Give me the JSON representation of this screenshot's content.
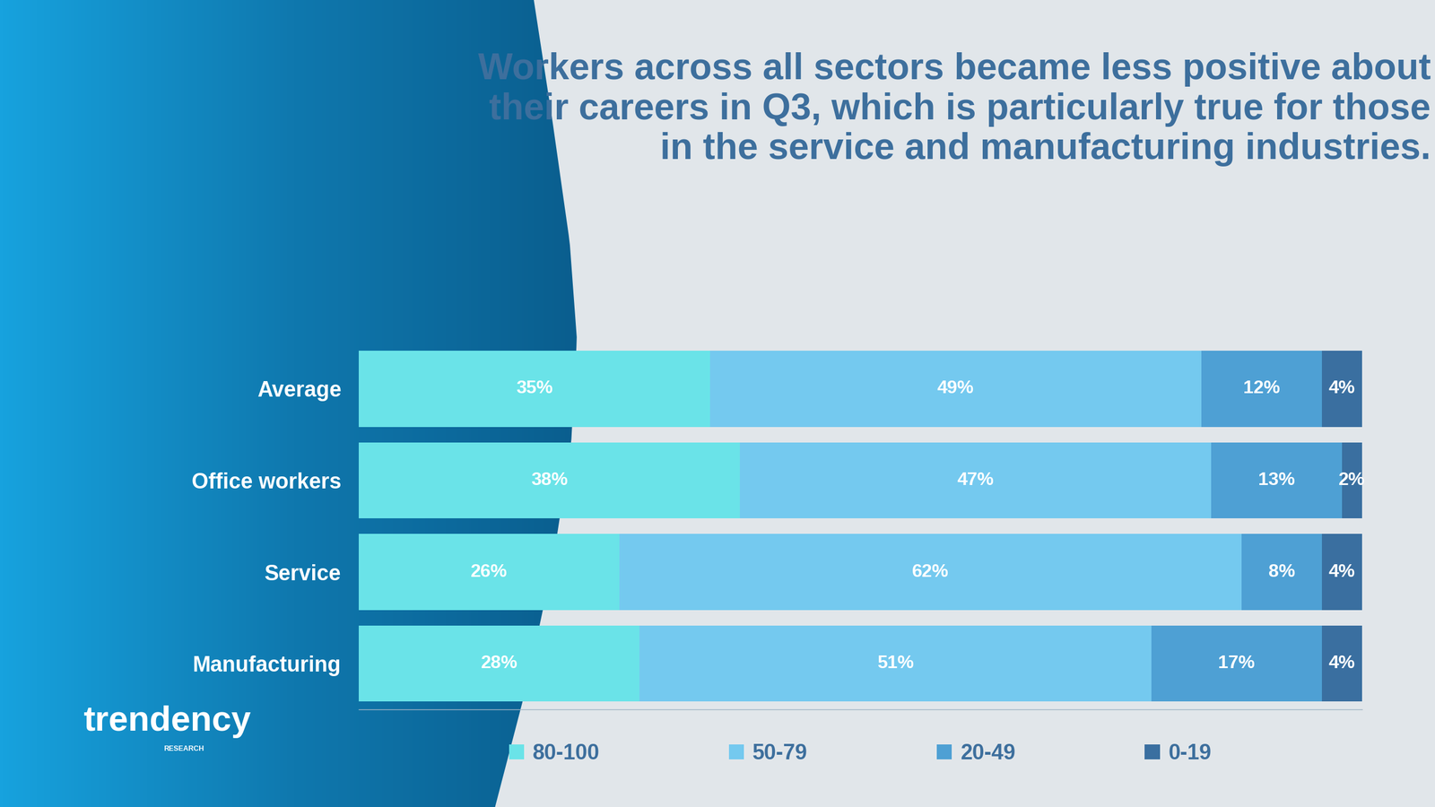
{
  "chart_data": {
    "type": "bar",
    "orientation": "horizontal",
    "stacked": true,
    "title": "Workers across all sectors became less positive about their careers in Q3, which is particularly true for those in the service and manufacturing industries.",
    "categories": [
      "Average",
      "Office workers",
      "Service",
      "Manufacturing"
    ],
    "series": [
      {
        "name": "80-100",
        "color": "#6AE3E8",
        "values": [
          35,
          38,
          26,
          28
        ],
        "value_labels": [
          "35%",
          "38%",
          "26%",
          "28%"
        ]
      },
      {
        "name": "50-79",
        "color": "#74C9EF",
        "values": [
          49,
          47,
          62,
          51
        ],
        "value_labels": [
          "49%",
          "47%",
          "62%",
          "51%"
        ]
      },
      {
        "name": "20-49",
        "color": "#4EA0D4",
        "values": [
          12,
          13,
          8,
          17
        ],
        "value_labels": [
          "12%",
          "13%",
          "8%",
          "17%"
        ]
      },
      {
        "name": "0-19",
        "color": "#3A6FA0",
        "values": [
          4,
          2,
          4,
          4
        ],
        "value_labels": [
          "4%",
          "2%",
          "4%",
          "4%"
        ]
      }
    ],
    "xlim": [
      0,
      100
    ],
    "xticks": [],
    "tick_labels": "y",
    "data_labels": true,
    "legend": "bottom",
    "grid": false,
    "annotations": [
      "trendency",
      "RESEARCH"
    ]
  }
}
